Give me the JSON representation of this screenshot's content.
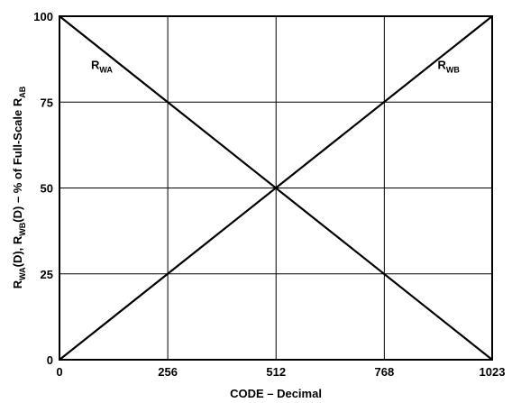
{
  "chart_data": {
    "type": "line",
    "title": "",
    "xlabel": "CODE – Decimal",
    "ylabel": {
      "parts": [
        {
          "text": "R",
          "sub": false
        },
        {
          "text": "WA",
          "sub": true
        },
        {
          "text": "(D), R",
          "sub": false
        },
        {
          "text": "WB",
          "sub": true
        },
        {
          "text": "(D)  – % of Full-Scale R",
          "sub": false
        },
        {
          "text": "AB",
          "sub": true
        }
      ]
    },
    "xlim": [
      0,
      1023
    ],
    "ylim": [
      0,
      100
    ],
    "xticks": [
      0,
      256,
      512,
      768,
      1023
    ],
    "xtick_labels": [
      "0",
      "256",
      "512",
      "768",
      "1023"
    ],
    "yticks": [
      0,
      25,
      50,
      75,
      100
    ],
    "ytick_labels": [
      "0",
      "25",
      "50",
      "75",
      "100"
    ],
    "grid": true,
    "series": [
      {
        "name": "RWA",
        "label_main": "R",
        "label_sub": "WA",
        "x": [
          0,
          1023
        ],
        "y": [
          100,
          0
        ]
      },
      {
        "name": "RWB",
        "label_main": "R",
        "label_sub": "WB",
        "x": [
          0,
          1023
        ],
        "y": [
          0,
          100
        ]
      }
    ],
    "annotations": [
      {
        "series": "RWA",
        "x": 100,
        "y": 86
      },
      {
        "series": "RWB",
        "x": 920,
        "y": 86
      }
    ],
    "colors": {
      "line": "#000000",
      "grid": "#000000",
      "background": "#ffffff"
    }
  }
}
